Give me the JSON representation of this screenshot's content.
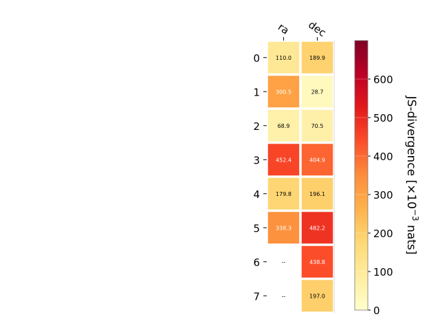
{
  "chart_data": {
    "type": "heatmap",
    "columns": [
      "ra",
      "dec"
    ],
    "rows": [
      "0",
      "1",
      "2",
      "3",
      "4",
      "5",
      "6",
      "7"
    ],
    "values": [
      [
        110.0,
        189.9
      ],
      [
        300.5,
        28.7
      ],
      [
        68.9,
        70.5
      ],
      [
        452.4,
        404.9
      ],
      [
        179.8,
        196.1
      ],
      [
        338.3,
        482.2
      ],
      [
        null,
        438.8
      ],
      [
        null,
        197.0
      ]
    ],
    "missing_label": "--",
    "colorbar": {
      "label_prefix": "JS-divergence [×10",
      "label_exp": "−3",
      "label_suffix": " nats]",
      "range": [
        0,
        700
      ],
      "ticks": [
        0,
        100,
        200,
        300,
        400,
        500,
        600
      ],
      "colormap": "YlOrRd"
    }
  }
}
